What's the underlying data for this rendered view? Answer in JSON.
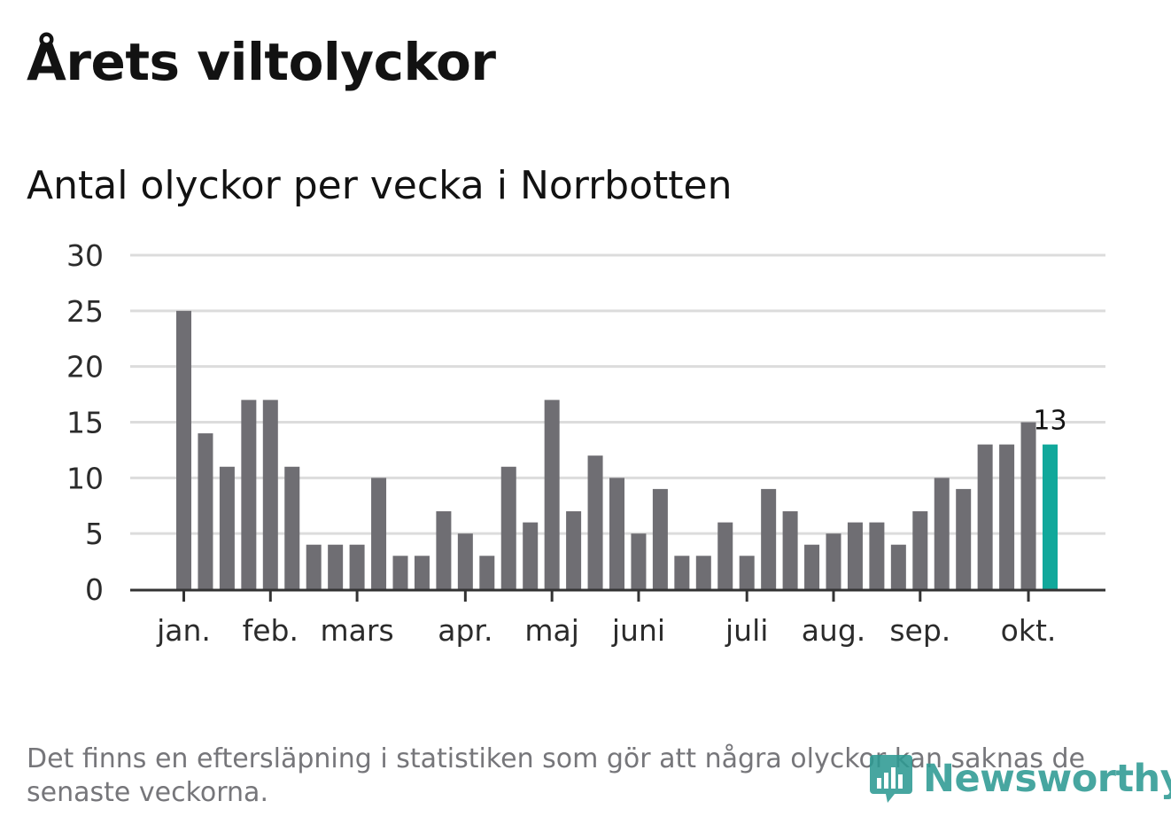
{
  "title": "Årets viltolyckor",
  "subtitle": "Antal olyckor per vecka i Norrbotten",
  "footnote": "Det finns en eftersläpning i statistiken som gör att några olyckor kan saknas de senaste veckorna.",
  "logo": {
    "text": "Newsworthy",
    "icon": "newsworthy-bar-chart-icon"
  },
  "colors": {
    "bar": "#6f6e73",
    "highlight": "#11a89b",
    "grid": "#dcdcdc",
    "axis": "#333333",
    "text": "#121212",
    "footnote": "#76767a",
    "brand": "#2e9a93"
  },
  "chart_data": {
    "type": "bar",
    "title": "Antal olyckor per vecka i Norrbotten",
    "xlabel": "",
    "ylabel": "",
    "ylim": [
      0,
      30
    ],
    "yticks": [
      0,
      5,
      10,
      15,
      20,
      25,
      30
    ],
    "grid": true,
    "weeks": [
      1,
      2,
      3,
      4,
      5,
      6,
      7,
      8,
      9,
      10,
      11,
      12,
      13,
      14,
      15,
      16,
      17,
      18,
      19,
      20,
      21,
      22,
      23,
      24,
      25,
      26,
      27,
      28,
      29,
      30,
      31,
      32,
      33,
      34,
      35,
      36,
      37,
      38,
      39,
      40,
      41
    ],
    "values": [
      25,
      14,
      11,
      17,
      17,
      11,
      4,
      4,
      4,
      10,
      3,
      3,
      7,
      5,
      3,
      11,
      6,
      17,
      7,
      12,
      10,
      5,
      9,
      3,
      3,
      6,
      3,
      9,
      7,
      4,
      5,
      6,
      6,
      4,
      7,
      10,
      9,
      13,
      13,
      15,
      13
    ],
    "highlight_index": 40,
    "highlight_label": "13",
    "month_ticks": [
      {
        "label": "jan.",
        "position": 1
      },
      {
        "label": "feb.",
        "position": 5
      },
      {
        "label": "mars",
        "position": 9
      },
      {
        "label": "apr.",
        "position": 14
      },
      {
        "label": "maj",
        "position": 18
      },
      {
        "label": "juni",
        "position": 22
      },
      {
        "label": "juli",
        "position": 27
      },
      {
        "label": "aug.",
        "position": 31
      },
      {
        "label": "sep.",
        "position": 35
      },
      {
        "label": "okt.",
        "position": 40
      }
    ]
  }
}
